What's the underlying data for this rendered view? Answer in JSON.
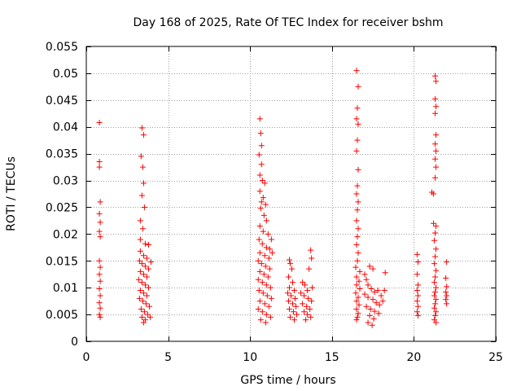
{
  "chart_data": {
    "type": "scatter",
    "title": "Day 168 of 2025, Rate Of TEC Index for receiver bshm",
    "xlabel": "GPS time / hours",
    "ylabel": "ROTI / TECUs",
    "xlim": [
      0,
      25
    ],
    "ylim": [
      0,
      0.055
    ],
    "xticks": [
      0,
      5,
      10,
      15,
      20,
      25
    ],
    "yticks": [
      0,
      0.005,
      0.01,
      0.015,
      0.02,
      0.025,
      0.03,
      0.035,
      0.04,
      0.045,
      0.05,
      0.055
    ],
    "xtick_labels": [
      "0",
      "5",
      "10",
      "15",
      "20",
      "25"
    ],
    "ytick_labels": [
      "0",
      "0.005",
      "0.01",
      "0.015",
      "0.02",
      "0.025",
      "0.03",
      "0.035",
      "0.04",
      "0.045",
      "0.05",
      "0.055"
    ],
    "grid": true,
    "marker": "+",
    "color": "#ff0000",
    "series": [
      {
        "name": "ROTI",
        "points": [
          [
            0.8,
            0.0408
          ],
          [
            0.8,
            0.0335
          ],
          [
            0.8,
            0.0325
          ],
          [
            0.85,
            0.026
          ],
          [
            0.8,
            0.0238
          ],
          [
            0.85,
            0.0222
          ],
          [
            0.8,
            0.0205
          ],
          [
            0.85,
            0.0195
          ],
          [
            0.8,
            0.015
          ],
          [
            0.85,
            0.0138
          ],
          [
            0.8,
            0.0125
          ],
          [
            0.85,
            0.0112
          ],
          [
            0.8,
            0.0098
          ],
          [
            0.85,
            0.0085
          ],
          [
            0.8,
            0.0072
          ],
          [
            0.85,
            0.0062
          ],
          [
            0.8,
            0.005
          ],
          [
            0.85,
            0.0045
          ],
          [
            3.4,
            0.0398
          ],
          [
            3.5,
            0.0385
          ],
          [
            3.35,
            0.0345
          ],
          [
            3.45,
            0.0325
          ],
          [
            3.5,
            0.0295
          ],
          [
            3.4,
            0.0272
          ],
          [
            3.55,
            0.025
          ],
          [
            3.3,
            0.0225
          ],
          [
            3.45,
            0.021
          ],
          [
            3.3,
            0.019
          ],
          [
            3.6,
            0.0182
          ],
          [
            3.8,
            0.018
          ],
          [
            3.3,
            0.0168
          ],
          [
            3.5,
            0.016
          ],
          [
            3.7,
            0.0155
          ],
          [
            3.25,
            0.015
          ],
          [
            3.4,
            0.0145
          ],
          [
            3.6,
            0.014
          ],
          [
            3.8,
            0.0135
          ],
          [
            3.3,
            0.013
          ],
          [
            3.5,
            0.0125
          ],
          [
            3.7,
            0.012
          ],
          [
            3.2,
            0.0115
          ],
          [
            3.4,
            0.011
          ],
          [
            3.6,
            0.0105
          ],
          [
            3.8,
            0.01
          ],
          [
            3.3,
            0.0095
          ],
          [
            3.5,
            0.009
          ],
          [
            3.7,
            0.0085
          ],
          [
            3.25,
            0.008
          ],
          [
            3.45,
            0.0075
          ],
          [
            3.65,
            0.007
          ],
          [
            3.85,
            0.0065
          ],
          [
            3.35,
            0.006
          ],
          [
            3.55,
            0.0055
          ],
          [
            3.75,
            0.005
          ],
          [
            3.4,
            0.0045
          ],
          [
            3.6,
            0.004
          ],
          [
            3.5,
            0.0035
          ],
          [
            3.9,
            0.0045
          ],
          [
            3.95,
            0.0148
          ],
          [
            10.6,
            0.0415
          ],
          [
            10.65,
            0.0388
          ],
          [
            10.7,
            0.0365
          ],
          [
            10.55,
            0.0348
          ],
          [
            10.7,
            0.033
          ],
          [
            10.6,
            0.031
          ],
          [
            10.75,
            0.03
          ],
          [
            10.9,
            0.0295
          ],
          [
            10.6,
            0.028
          ],
          [
            10.8,
            0.0268
          ],
          [
            10.7,
            0.026
          ],
          [
            10.95,
            0.0255
          ],
          [
            10.65,
            0.0248
          ],
          [
            10.85,
            0.0235
          ],
          [
            11.0,
            0.0225
          ],
          [
            10.6,
            0.0215
          ],
          [
            10.8,
            0.0205
          ],
          [
            11.1,
            0.02
          ],
          [
            10.55,
            0.019
          ],
          [
            10.75,
            0.0182
          ],
          [
            11.0,
            0.0175
          ],
          [
            11.2,
            0.0172
          ],
          [
            10.6,
            0.0165
          ],
          [
            10.9,
            0.016
          ],
          [
            11.15,
            0.0155
          ],
          [
            10.5,
            0.015
          ],
          [
            10.7,
            0.0145
          ],
          [
            10.95,
            0.014
          ],
          [
            11.2,
            0.0135
          ],
          [
            10.6,
            0.013
          ],
          [
            10.85,
            0.0125
          ],
          [
            11.1,
            0.012
          ],
          [
            10.5,
            0.0115
          ],
          [
            10.75,
            0.011
          ],
          [
            11.0,
            0.0105
          ],
          [
            11.25,
            0.01
          ],
          [
            10.55,
            0.0095
          ],
          [
            10.8,
            0.009
          ],
          [
            11.05,
            0.0085
          ],
          [
            11.3,
            0.008
          ],
          [
            10.6,
            0.0075
          ],
          [
            10.9,
            0.007
          ],
          [
            11.15,
            0.0065
          ],
          [
            10.5,
            0.006
          ],
          [
            10.75,
            0.0055
          ],
          [
            11.0,
            0.005
          ],
          [
            11.25,
            0.0045
          ],
          [
            10.65,
            0.004
          ],
          [
            10.95,
            0.0035
          ],
          [
            11.3,
            0.019
          ],
          [
            11.35,
            0.0165
          ],
          [
            12.4,
            0.0152
          ],
          [
            12.45,
            0.0145
          ],
          [
            12.55,
            0.0135
          ],
          [
            12.35,
            0.012
          ],
          [
            12.6,
            0.011
          ],
          [
            12.4,
            0.01
          ],
          [
            12.7,
            0.0095
          ],
          [
            12.3,
            0.009
          ],
          [
            12.5,
            0.0085
          ],
          [
            12.75,
            0.008
          ],
          [
            12.35,
            0.0075
          ],
          [
            12.6,
            0.007
          ],
          [
            12.8,
            0.0065
          ],
          [
            12.4,
            0.006
          ],
          [
            12.65,
            0.0055
          ],
          [
            12.85,
            0.005
          ],
          [
            12.45,
            0.0045
          ],
          [
            12.7,
            0.004
          ],
          [
            13.2,
            0.011
          ],
          [
            13.35,
            0.0105
          ],
          [
            13.5,
            0.0095
          ],
          [
            13.7,
            0.017
          ],
          [
            13.75,
            0.0155
          ],
          [
            13.6,
            0.0135
          ],
          [
            13.8,
            0.01
          ],
          [
            13.1,
            0.009
          ],
          [
            13.3,
            0.0085
          ],
          [
            13.55,
            0.008
          ],
          [
            13.75,
            0.0075
          ],
          [
            13.2,
            0.007
          ],
          [
            13.45,
            0.0065
          ],
          [
            13.65,
            0.006
          ],
          [
            13.3,
            0.0055
          ],
          [
            13.5,
            0.005
          ],
          [
            13.7,
            0.0045
          ],
          [
            13.4,
            0.004
          ],
          [
            16.5,
            0.0505
          ],
          [
            16.6,
            0.0475
          ],
          [
            16.55,
            0.0435
          ],
          [
            16.5,
            0.0415
          ],
          [
            16.6,
            0.0405
          ],
          [
            16.55,
            0.0375
          ],
          [
            16.5,
            0.0355
          ],
          [
            16.6,
            0.032
          ],
          [
            16.55,
            0.029
          ],
          [
            16.5,
            0.0275
          ],
          [
            16.6,
            0.026
          ],
          [
            16.55,
            0.0245
          ],
          [
            16.5,
            0.0225
          ],
          [
            16.6,
            0.021
          ],
          [
            16.55,
            0.0195
          ],
          [
            16.5,
            0.018
          ],
          [
            16.6,
            0.0165
          ],
          [
            16.55,
            0.015
          ],
          [
            16.45,
            0.0138
          ],
          [
            16.7,
            0.013
          ],
          [
            16.5,
            0.012
          ],
          [
            16.65,
            0.0112
          ],
          [
            16.5,
            0.0105
          ],
          [
            16.7,
            0.0098
          ],
          [
            16.45,
            0.009
          ],
          [
            16.6,
            0.0082
          ],
          [
            16.5,
            0.0075
          ],
          [
            16.65,
            0.0068
          ],
          [
            16.5,
            0.006
          ],
          [
            16.6,
            0.0052
          ],
          [
            16.55,
            0.0045
          ],
          [
            16.5,
            0.004
          ],
          [
            17.0,
            0.0125
          ],
          [
            17.1,
            0.0115
          ],
          [
            17.3,
            0.014
          ],
          [
            17.5,
            0.0135
          ],
          [
            17.2,
            0.0105
          ],
          [
            17.4,
            0.0098
          ],
          [
            17.6,
            0.0092
          ],
          [
            17.0,
            0.0088
          ],
          [
            17.8,
            0.0095
          ],
          [
            17.2,
            0.0082
          ],
          [
            17.5,
            0.0078
          ],
          [
            17.7,
            0.0072
          ],
          [
            17.9,
            0.0068
          ],
          [
            17.1,
            0.0065
          ],
          [
            17.35,
            0.006
          ],
          [
            17.6,
            0.0056
          ],
          [
            17.85,
            0.0052
          ],
          [
            17.3,
            0.0048
          ],
          [
            17.55,
            0.0042
          ],
          [
            17.2,
            0.0035
          ],
          [
            17.45,
            0.003
          ],
          [
            18.0,
            0.0085
          ],
          [
            18.1,
            0.0075
          ],
          [
            18.25,
            0.0128
          ],
          [
            18.2,
            0.0095
          ],
          [
            20.2,
            0.0162
          ],
          [
            20.25,
            0.0148
          ],
          [
            20.2,
            0.0125
          ],
          [
            20.25,
            0.0105
          ],
          [
            20.2,
            0.0095
          ],
          [
            20.25,
            0.0085
          ],
          [
            20.2,
            0.0075
          ],
          [
            20.25,
            0.0065
          ],
          [
            20.2,
            0.0055
          ],
          [
            20.25,
            0.0048
          ],
          [
            21.3,
            0.0495
          ],
          [
            21.35,
            0.0485
          ],
          [
            21.3,
            0.0452
          ],
          [
            21.35,
            0.0438
          ],
          [
            21.3,
            0.0425
          ],
          [
            21.35,
            0.0385
          ],
          [
            21.3,
            0.0368
          ],
          [
            21.35,
            0.0355
          ],
          [
            21.3,
            0.034
          ],
          [
            21.35,
            0.0325
          ],
          [
            21.3,
            0.0305
          ],
          [
            21.1,
            0.0278
          ],
          [
            21.2,
            0.0275
          ],
          [
            21.2,
            0.022
          ],
          [
            21.35,
            0.0215
          ],
          [
            21.3,
            0.0202
          ],
          [
            21.25,
            0.0188
          ],
          [
            21.35,
            0.0172
          ],
          [
            21.3,
            0.0158
          ],
          [
            21.25,
            0.0145
          ],
          [
            21.35,
            0.0132
          ],
          [
            21.3,
            0.012
          ],
          [
            21.25,
            0.011
          ],
          [
            21.35,
            0.01
          ],
          [
            21.3,
            0.0092
          ],
          [
            21.25,
            0.0085
          ],
          [
            21.35,
            0.0078
          ],
          [
            21.3,
            0.007
          ],
          [
            21.25,
            0.0062
          ],
          [
            21.35,
            0.0055
          ],
          [
            21.3,
            0.0048
          ],
          [
            21.25,
            0.004
          ],
          [
            21.35,
            0.0035
          ],
          [
            22.0,
            0.0148
          ],
          [
            21.95,
            0.0118
          ],
          [
            22.0,
            0.0102
          ],
          [
            21.95,
            0.0092
          ],
          [
            22.0,
            0.0085
          ],
          [
            21.95,
            0.0078
          ],
          [
            22.0,
            0.007
          ]
        ]
      }
    ]
  }
}
